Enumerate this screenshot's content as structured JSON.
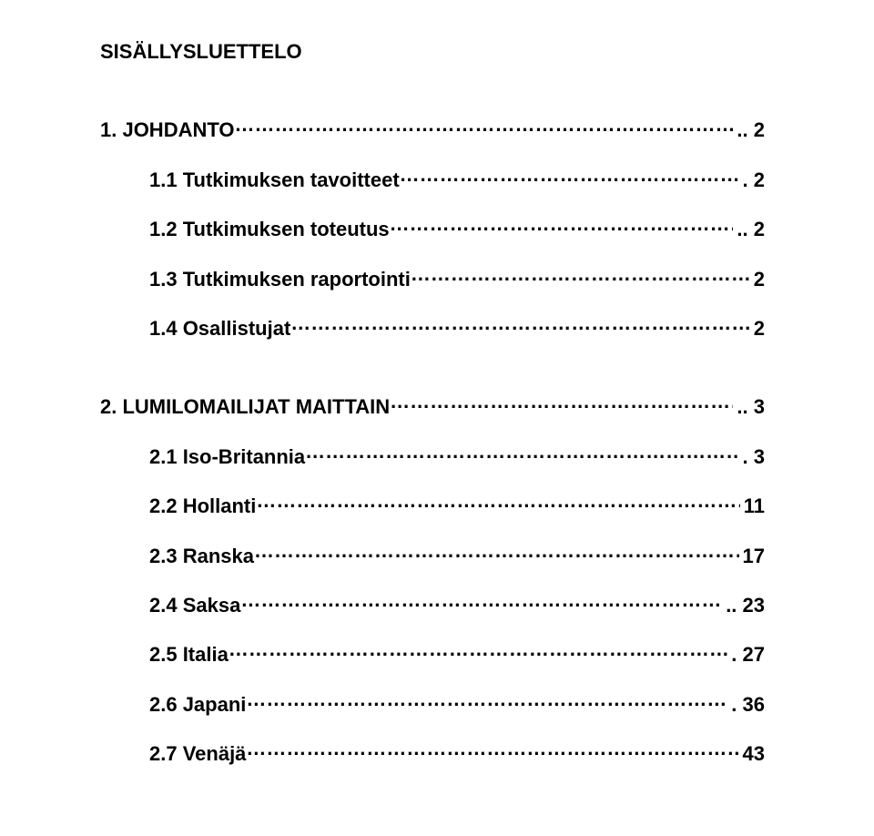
{
  "document": {
    "title": "SISÄLLYSLUETTELO",
    "font_family": "Arial",
    "title_fontsize": 22,
    "entry_fontsize": 22,
    "text_color": "#000000",
    "background_color": "#ffffff"
  },
  "toc": {
    "entries": [
      {
        "label": "1. JOHDANTO",
        "page": ".. 2",
        "indent": false,
        "gap_before": false
      },
      {
        "label": "1.1 Tutkimuksen tavoitteet",
        "page": ". 2",
        "indent": true,
        "gap_before": false
      },
      {
        "label": "1.2 Tutkimuksen toteutus",
        "page": ".. 2",
        "indent": true,
        "gap_before": false
      },
      {
        "label": "1.3 Tutkimuksen raportointi",
        "page": " 2",
        "indent": true,
        "gap_before": false
      },
      {
        "label": "1.4 Osallistujat",
        "page": " 2",
        "indent": true,
        "gap_before": false
      },
      {
        "label": "2. LUMILOMAILIJAT MAITTAIN",
        "page": ".. 3",
        "indent": false,
        "gap_before": true
      },
      {
        "label": "2.1 Iso-Britannia",
        "page": ". 3",
        "indent": true,
        "gap_before": false
      },
      {
        "label": "2.2 Hollanti",
        "page": "11",
        "indent": true,
        "gap_before": false
      },
      {
        "label": "2.3 Ranska",
        "page": "17",
        "indent": true,
        "gap_before": false
      },
      {
        "label": "2.4 Saksa",
        "page": ".. 23",
        "indent": true,
        "gap_before": false
      },
      {
        "label": "2.5 Italia",
        "page": ". 27",
        "indent": true,
        "gap_before": false
      },
      {
        "label": "2.6 Japani",
        "page": ". 36",
        "indent": true,
        "gap_before": false
      },
      {
        "label": "2.7 Venäjä",
        "page": " 43",
        "indent": true,
        "gap_before": false
      }
    ]
  }
}
